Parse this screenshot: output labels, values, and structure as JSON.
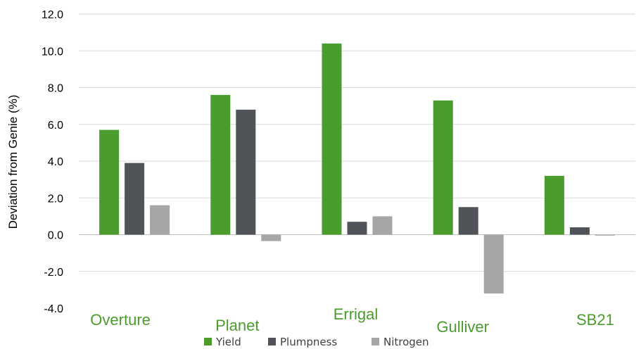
{
  "chart_data": {
    "type": "bar",
    "title": "",
    "xlabel": "",
    "ylabel": "Deviation from Genie (%)",
    "ylim": [
      -4,
      12
    ],
    "yticks": [
      "12.0",
      "10.0",
      "8.0",
      "6.0",
      "4.0",
      "2.0",
      "0.0",
      "-2.0",
      "-4.0"
    ],
    "grid": true,
    "legend_position": "bottom",
    "categories": [
      "Overture",
      "Planet",
      "Errigal",
      "Gulliver",
      "SB21"
    ],
    "series": [
      {
        "name": "Yield",
        "color": "#4a9c2d",
        "values": [
          5.7,
          7.6,
          10.4,
          7.3,
          3.2
        ]
      },
      {
        "name": "Plumpness",
        "color": "#505458",
        "values": [
          3.9,
          6.8,
          0.7,
          1.5,
          0.4
        ]
      },
      {
        "name": "Nitrogen",
        "color": "#a6a6a6",
        "values": [
          1.6,
          -0.35,
          1.0,
          -3.2,
          -0.05
        ]
      }
    ]
  }
}
